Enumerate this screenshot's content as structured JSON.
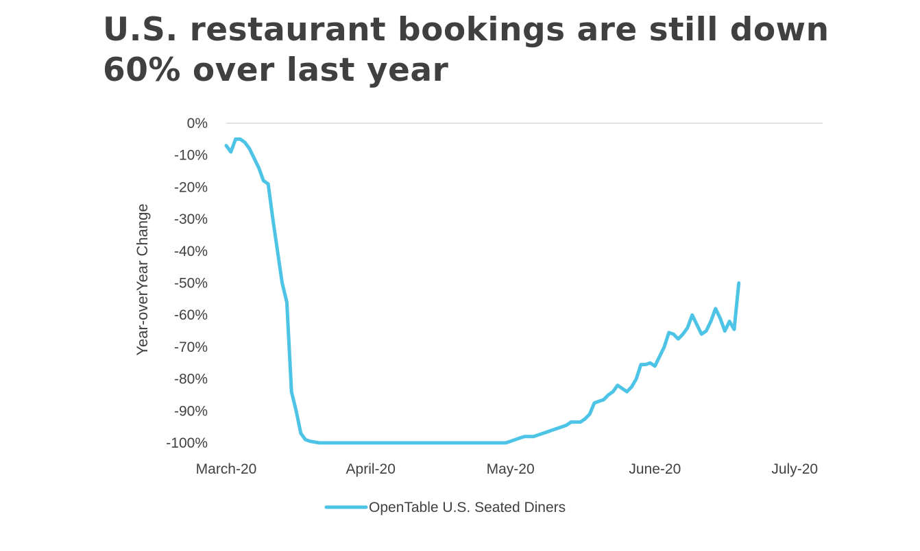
{
  "title_lines": [
    "U.S. restaurant bookings are still down",
    "60% over last year"
  ],
  "chart_data": {
    "type": "line",
    "ylabel": "Year-overYear Change",
    "xlabel": "",
    "ylim": [
      -100,
      0
    ],
    "yticks": [
      0,
      -10,
      -20,
      -30,
      -40,
      -50,
      -60,
      -70,
      -80,
      -90,
      -100
    ],
    "ytick_labels": [
      "0%",
      "-10%",
      "-20%",
      "-30%",
      "-40%",
      "-50%",
      "-60%",
      "-70%",
      "-80%",
      "-90%",
      "-100%"
    ],
    "x_tick_labels": [
      {
        "label": "March-20",
        "day": 0
      },
      {
        "label": "April-20",
        "day": 31
      },
      {
        "label": "May-20",
        "day": 61
      },
      {
        "label": "June-20",
        "day": 92
      },
      {
        "label": "July-20",
        "day": 122
      }
    ],
    "xlim": [
      0,
      128
    ],
    "grid": "zero-line only",
    "legend_position": "bottom",
    "color": "#4dc3e6",
    "series": [
      {
        "name": "OpenTable U.S. Seated Diners",
        "points": [
          [
            0,
            -7
          ],
          [
            1,
            -9
          ],
          [
            2,
            -5
          ],
          [
            3,
            -5
          ],
          [
            4,
            -6
          ],
          [
            5,
            -8
          ],
          [
            6,
            -11
          ],
          [
            7,
            -14
          ],
          [
            8,
            -18
          ],
          [
            9,
            -19
          ],
          [
            10,
            -30
          ],
          [
            11,
            -40
          ],
          [
            12,
            -50
          ],
          [
            13,
            -56
          ],
          [
            14,
            -84
          ],
          [
            15,
            -90
          ],
          [
            16,
            -97
          ],
          [
            17,
            -99
          ],
          [
            18,
            -99.5
          ],
          [
            20,
            -100
          ],
          [
            25,
            -100
          ],
          [
            30,
            -100
          ],
          [
            35,
            -100
          ],
          [
            40,
            -100
          ],
          [
            45,
            -100
          ],
          [
            50,
            -100
          ],
          [
            55,
            -100
          ],
          [
            60,
            -100
          ],
          [
            61,
            -99.5
          ],
          [
            62,
            -99
          ],
          [
            63,
            -98.5
          ],
          [
            64,
            -98
          ],
          [
            65,
            -98
          ],
          [
            66,
            -98
          ],
          [
            67,
            -97.5
          ],
          [
            68,
            -97
          ],
          [
            69,
            -96.5
          ],
          [
            70,
            -96
          ],
          [
            71,
            -95.5
          ],
          [
            72,
            -95
          ],
          [
            73,
            -94.5
          ],
          [
            74,
            -93.5
          ],
          [
            75,
            -93.5
          ],
          [
            76,
            -93.5
          ],
          [
            77,
            -92.5
          ],
          [
            78,
            -91
          ],
          [
            79,
            -87.5
          ],
          [
            80,
            -87
          ],
          [
            81,
            -86.5
          ],
          [
            82,
            -85
          ],
          [
            83,
            -84
          ],
          [
            84,
            -82
          ],
          [
            85,
            -83
          ],
          [
            86,
            -84
          ],
          [
            87,
            -82.5
          ],
          [
            88,
            -80
          ],
          [
            89,
            -75.5
          ],
          [
            90,
            -75.5
          ],
          [
            91,
            -75
          ],
          [
            92,
            -76
          ],
          [
            93,
            -73
          ],
          [
            94,
            -70
          ],
          [
            95,
            -65.5
          ],
          [
            96,
            -66
          ],
          [
            97,
            -67.5
          ],
          [
            98,
            -66
          ],
          [
            99,
            -64
          ],
          [
            100,
            -60
          ],
          [
            101,
            -63
          ],
          [
            102,
            -66
          ],
          [
            103,
            -65
          ],
          [
            104,
            -62
          ],
          [
            105,
            -58
          ],
          [
            106,
            -61
          ],
          [
            107,
            -65
          ],
          [
            108,
            -62
          ],
          [
            109,
            -64.5
          ],
          [
            110,
            -50
          ]
        ]
      }
    ]
  }
}
